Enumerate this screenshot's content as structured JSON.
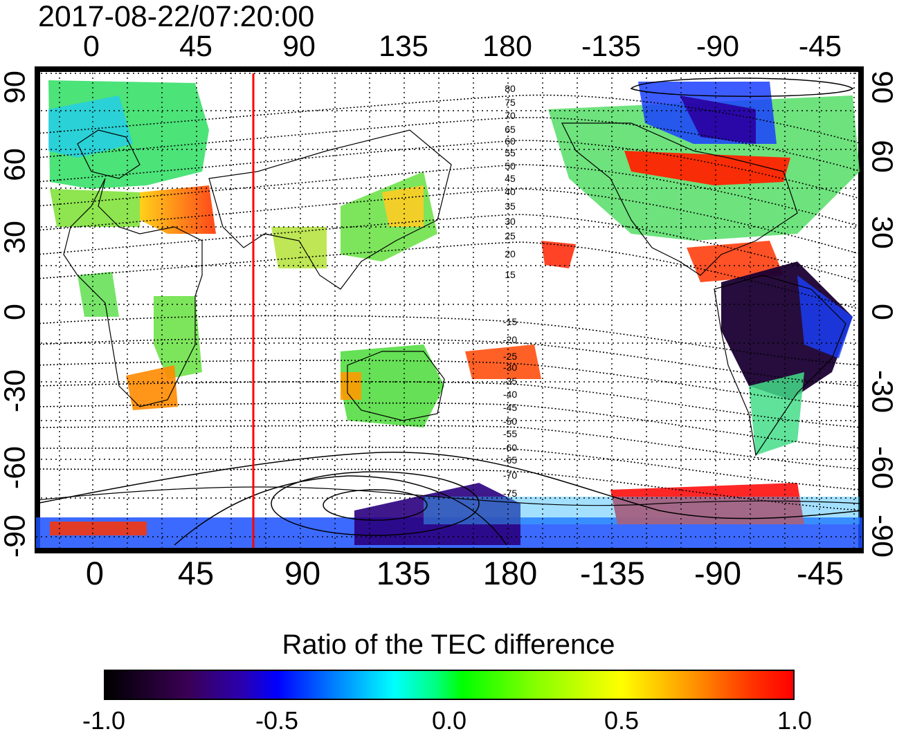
{
  "timestamp": "2017-08-22/07:20:00",
  "top_axis_ticks": [
    "0",
    "45",
    "90",
    "135",
    "180",
    "-135",
    "-90",
    "-45"
  ],
  "bottom_axis_ticks": [
    "0",
    "45",
    "90",
    "135",
    "180",
    "-135",
    "-90",
    "-45"
  ],
  "left_axis_ticks": [
    "90",
    "60",
    "30",
    "0",
    "-30",
    "-60",
    "-90"
  ],
  "right_axis_ticks": [
    "90",
    "60",
    "30",
    "0",
    "-30",
    "-60",
    "-90"
  ],
  "contour_labels_north": [
    "80",
    "75",
    "70",
    "65",
    "60",
    "55",
    "50",
    "45",
    "40",
    "35",
    "30",
    "25",
    "20",
    "15"
  ],
  "contour_labels_south": [
    "-15",
    "-20",
    "-25",
    "-30",
    "-35",
    "-40",
    "-45",
    "-50",
    "-55",
    "-60",
    "-65",
    "-70",
    "-75"
  ],
  "marker_line": {
    "longitude": 70,
    "color": "#ff0000"
  },
  "colorbar": {
    "title": "Ratio of the TEC difference",
    "ticks": [
      "-1.0",
      "-0.5",
      "0.0",
      "0.5",
      "1.0"
    ],
    "range": [
      -1.0,
      1.0
    ]
  },
  "colors": {
    "negative_strong": "#1a0033",
    "negative": "#0000ff",
    "neutral": "#00ff00",
    "positive": "#ffff00",
    "positive_strong": "#ff0000"
  }
}
